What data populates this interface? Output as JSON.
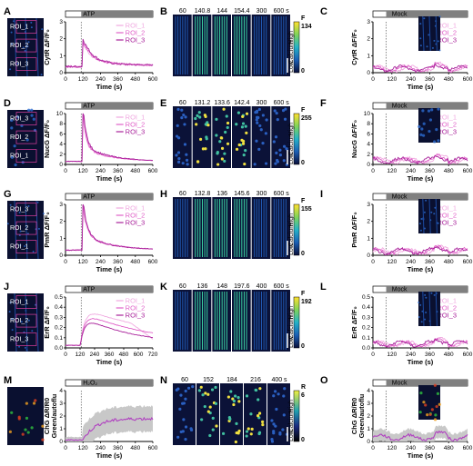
{
  "colors": {
    "roi_1": "#f0a8e0",
    "roi_2": "#e060c8",
    "roi_3": "#a8209a",
    "chg": "#b040c0",
    "sd_band": "#c8c8c8",
    "stim_bar": "#808080"
  },
  "legend_labels": [
    "ROI_1",
    "ROI_2",
    "ROI_3"
  ],
  "rows": [
    {
      "id": "cyt",
      "letters": [
        "A",
        "B",
        "C"
      ],
      "roi_labels": [
        "ROI_1",
        "ROI_2",
        "ROI_3"
      ],
      "stim_label": "ATP",
      "mock_label": "Mock",
      "ylabel": "CytR ΔF/F₀",
      "xlabel": "Time (s)",
      "yticks": [
        "0",
        "1",
        "2",
        "3"
      ],
      "xticks": [
        "0",
        "120",
        "240",
        "360",
        "480",
        "600"
      ],
      "mock_yticks": [
        "0",
        "1",
        "2",
        "3"
      ],
      "mock_xticks": [
        "0",
        "120",
        "240",
        "360",
        "480",
        "600"
      ],
      "frames": [
        "60",
        "140.8",
        "144",
        "154.4",
        "300",
        "600 s"
      ],
      "cbar_max": "134",
      "cbar_min": "0",
      "cbar_letter": "F",
      "cbar_high": "High",
      "cbar_mid": "Calcium",
      "cbar_low": "Low"
    },
    {
      "id": "nuc",
      "letters": [
        "D",
        "E",
        "F"
      ],
      "roi_labels": [
        "ROI_3",
        "ROI_2",
        "ROI_1"
      ],
      "stim_label": "ATP",
      "mock_label": "Mock",
      "ylabel": "NucG ΔF/F₀",
      "xlabel": "Time (s)",
      "yticks": [
        "0",
        "2",
        "4",
        "6",
        "8",
        "10"
      ],
      "xticks": [
        "0",
        "120",
        "240",
        "360",
        "480",
        "600"
      ],
      "mock_yticks": [
        "0",
        "2",
        "4",
        "6",
        "8",
        "10"
      ],
      "mock_xticks": [
        "0",
        "120",
        "240",
        "360",
        "480",
        "600"
      ],
      "frames": [
        "60",
        "131.2",
        "133.6",
        "142.4",
        "300",
        "600 s"
      ],
      "cbar_max": "255",
      "cbar_min": "0",
      "cbar_letter": "F",
      "cbar_high": "High",
      "cbar_mid": "Calcium",
      "cbar_low": "Low"
    },
    {
      "id": "pm",
      "letters": [
        "G",
        "H",
        "I"
      ],
      "roi_labels": [
        "ROI_3",
        "ROI_2",
        "ROI_1"
      ],
      "stim_label": "ATP",
      "mock_label": "Mock",
      "ylabel": "PmR ΔF/F₀",
      "xlabel": "Time (s)",
      "yticks": [
        "0",
        "1",
        "2",
        "3"
      ],
      "xticks": [
        "0",
        "120",
        "240",
        "360",
        "480",
        "600"
      ],
      "mock_yticks": [
        "0",
        "1",
        "2",
        "3"
      ],
      "mock_xticks": [
        "0",
        "120",
        "240",
        "360",
        "480",
        "600"
      ],
      "frames": [
        "60",
        "132.8",
        "136",
        "145.6",
        "300",
        "600 s"
      ],
      "cbar_max": "155",
      "cbar_min": "0",
      "cbar_letter": "F",
      "cbar_high": "High",
      "cbar_mid": "Calcium",
      "cbar_low": "Low"
    },
    {
      "id": "er",
      "letters": [
        "J",
        "K",
        "L"
      ],
      "roi_labels": [
        "ROI_1",
        "ROI_2",
        "ROI_3"
      ],
      "stim_label": "ATP",
      "mock_label": "Mock",
      "ylabel": "ErR ΔF/F₀",
      "xlabel": "Time (s)",
      "yticks": [
        "0.0",
        "0.1",
        "0.2",
        "0.3",
        "0.4",
        "0.5"
      ],
      "xticks": [
        "0",
        "120",
        "240",
        "360",
        "480",
        "600",
        "720"
      ],
      "mock_yticks": [
        "0.0",
        "0.1",
        "0.2",
        "0.3",
        "0.4",
        "0.5"
      ],
      "mock_xticks": [
        "0",
        "120",
        "240",
        "360",
        "480",
        "600"
      ],
      "frames": [
        "60",
        "136",
        "148",
        "197.6",
        "400",
        "600 s"
      ],
      "cbar_max": "192",
      "cbar_min": "0",
      "cbar_letter": "F",
      "cbar_high": "High",
      "cbar_mid": "Calcium",
      "cbar_low": "Low"
    },
    {
      "id": "chg",
      "letters": [
        "M",
        "N",
        "O"
      ],
      "roi_labels": [],
      "stim_label": "H₂O₂",
      "mock_label": "Mock",
      "ylabel": "ChG ΔR/R0",
      "ylabel2": "Green/autoflu",
      "xlabel": "Time (s)",
      "yticks": [
        "0",
        "1",
        "2",
        "3",
        "4"
      ],
      "xticks": [
        "0",
        "120",
        "240",
        "360",
        "480",
        "600"
      ],
      "mock_yticks": [
        "0",
        "1",
        "2",
        "3",
        "4"
      ],
      "mock_xticks": [
        "0",
        "120",
        "240",
        "360",
        "480",
        "600"
      ],
      "frames": [
        "60",
        "152",
        "184",
        "216",
        "400 s"
      ],
      "cbar_max": "6",
      "cbar_min": "0",
      "cbar_letter": "R",
      "cbar_high": "High",
      "cbar_mid": "Calcium",
      "cbar_low": "Low"
    }
  ]
}
